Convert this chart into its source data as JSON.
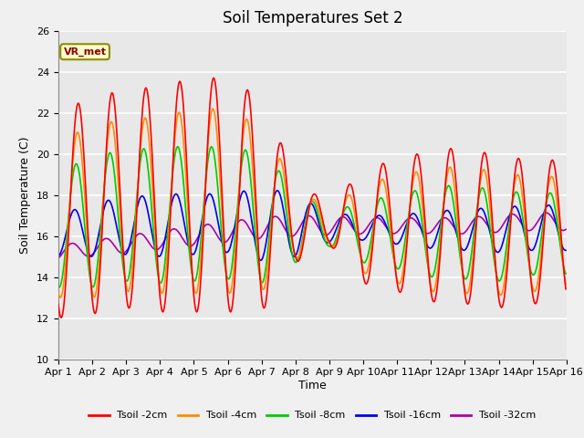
{
  "title": "Soil Temperatures Set 2",
  "xlabel": "Time",
  "ylabel": "Soil Temperature (C)",
  "ylim": [
    10,
    26
  ],
  "xlim": [
    0,
    15
  ],
  "xtick_labels": [
    "Apr 1",
    "Apr 2",
    "Apr 3",
    "Apr 4",
    "Apr 5",
    "Apr 6",
    "Apr 7",
    "Apr 8",
    "Apr 9",
    "Apr 10",
    "Apr 11",
    "Apr 12",
    "Apr 13",
    "Apr 14",
    "Apr 15",
    "Apr 16"
  ],
  "ytick_values": [
    10,
    12,
    14,
    16,
    18,
    20,
    22,
    24,
    26
  ],
  "annotation_text": "VR_met",
  "series": {
    "Tsoil -2cm": {
      "color": "#FF0000",
      "lw": 1.2
    },
    "Tsoil -4cm": {
      "color": "#FF8C00",
      "lw": 1.2
    },
    "Tsoil -8cm": {
      "color": "#00CC00",
      "lw": 1.2
    },
    "Tsoil -16cm": {
      "color": "#0000EE",
      "lw": 1.2
    },
    "Tsoil -32cm": {
      "color": "#AA00AA",
      "lw": 1.2
    }
  },
  "plot_bg": "#E8E8E8",
  "fig_bg": "#F0F0F0",
  "grid_color": "#FFFFFF",
  "title_fontsize": 12,
  "axis_fontsize": 9,
  "tick_fontsize": 8
}
